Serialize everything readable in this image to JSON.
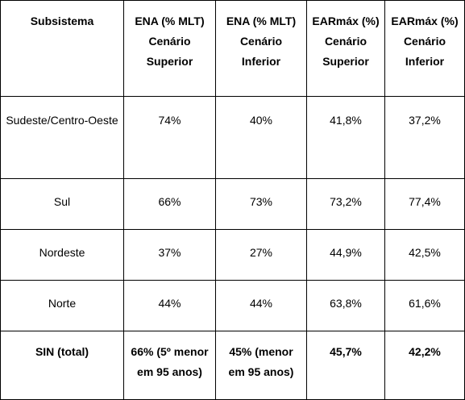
{
  "table": {
    "headers": [
      "Subsistema",
      "ENA (% MLT) Cenário Superior",
      "ENA (% MLT) Cenário Inferior",
      "EARmáx (%) Cenário Superior",
      "EARmáx (%) Cenário Inferior"
    ],
    "rows": [
      [
        "Sudeste/Centro-Oeste",
        "74%",
        "40%",
        "41,8%",
        "37,2%"
      ],
      [
        "Sul",
        "66%",
        "73%",
        "73,2%",
        "77,4%"
      ],
      [
        "Nordeste",
        "37%",
        "27%",
        "44,9%",
        "42,5%"
      ],
      [
        "Norte",
        "44%",
        "44%",
        "63,8%",
        "61,6%"
      ],
      [
        "SIN (total)",
        "66% (5º menor em 95 anos)",
        "45% (menor em 95 anos)",
        "45,7%",
        "42,2%"
      ]
    ]
  }
}
